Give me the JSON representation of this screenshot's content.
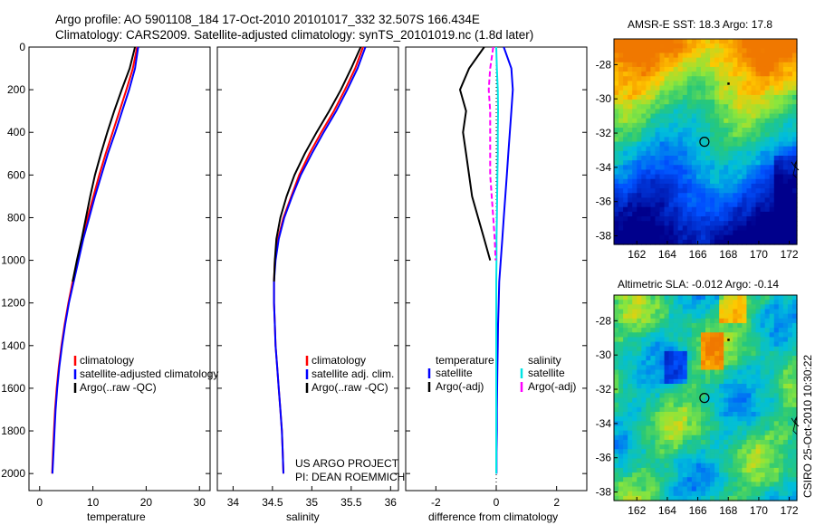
{
  "header": {
    "line1": "Argo profile: AO 5901108_184 17-Oct-2010 20101017_332 32.507S 166.434E",
    "line2": "Climatology: CARS2009. Satellite-adjusted climatology: synTS_20101019.nc (1.8d later)"
  },
  "footer": {
    "project": "US ARGO PROJECT",
    "pi": "PI: DEAN ROEMMICH",
    "timestamp": "CSIRO 25-Oct-2010 10:30:22"
  },
  "colors": {
    "climatology": "#ff0000",
    "satellite": "#0000ff",
    "argo": "#000000",
    "salinity_satellite": "#00e5e5",
    "salinity_argo": "#ff00ff",
    "marker": "#000000"
  },
  "chart_data": [
    {
      "type": "line",
      "id": "temperature",
      "xlabel": "temperature",
      "ylabel": "",
      "xlim": [
        -2,
        32
      ],
      "ylim": [
        2080,
        0
      ],
      "xticks": [
        "0",
        "10",
        "20",
        "30"
      ],
      "yticks": [
        "0",
        "200",
        "400",
        "600",
        "800",
        "1000",
        "1200",
        "1400",
        "1600",
        "1800",
        "2000"
      ],
      "depth": [
        0,
        100,
        200,
        300,
        400,
        500,
        600,
        700,
        800,
        900,
        1000,
        1100,
        1200,
        1300,
        1400,
        1500,
        1600,
        1700,
        1800,
        1900,
        2000
      ],
      "legend": [
        "climatology",
        "satellite-adjusted climatology",
        "Argo(..raw -QC)"
      ],
      "series": [
        {
          "name": "climatology",
          "color": "red",
          "values": [
            18.3,
            17.5,
            16.3,
            15.0,
            13.7,
            12.4,
            11.2,
            10.1,
            9.0,
            8.0,
            7.1,
            6.2,
            5.4,
            4.7,
            4.1,
            3.6,
            3.2,
            2.9,
            2.7,
            2.5,
            2.35
          ]
        },
        {
          "name": "satellite-adjusted climatology",
          "color": "blue",
          "values": [
            18.5,
            17.9,
            16.8,
            15.5,
            14.2,
            12.8,
            11.6,
            10.4,
            9.3,
            8.2,
            7.3,
            6.4,
            5.5,
            4.8,
            4.2,
            3.7,
            3.3,
            3.0,
            2.8,
            2.6,
            2.4
          ]
        },
        {
          "name": "Argo(..raw -QC)",
          "color": "black",
          "values": [
            17.9,
            16.9,
            15.4,
            14.0,
            12.7,
            11.5,
            10.4,
            9.5,
            8.7,
            7.9,
            7.0,
            6.2,
            null,
            null,
            null,
            null,
            null,
            null,
            null,
            null,
            null
          ]
        }
      ]
    },
    {
      "type": "line",
      "id": "salinity",
      "xlabel": "salinity",
      "ylabel": "",
      "xlim": [
        33.8,
        36.1
      ],
      "ylim": [
        2080,
        0
      ],
      "xticks": [
        "34",
        "34.5",
        "35",
        "35.5",
        "36"
      ],
      "depth": [
        0,
        100,
        200,
        300,
        400,
        500,
        600,
        700,
        800,
        900,
        1000,
        1100,
        1200,
        1300,
        1400,
        1500,
        1600,
        1700,
        1800,
        1900,
        2000
      ],
      "legend": [
        "climatology",
        "satellite adj. clim.",
        "Argo(..raw -QC)"
      ],
      "series": [
        {
          "name": "climatology",
          "color": "red",
          "values": [
            35.65,
            35.55,
            35.42,
            35.28,
            35.12,
            34.97,
            34.84,
            34.74,
            34.64,
            34.57,
            34.53,
            34.52,
            34.52,
            34.53,
            34.54,
            34.56,
            34.58,
            34.6,
            34.62,
            34.63,
            34.64
          ]
        },
        {
          "name": "satellite adj. clim.",
          "color": "blue",
          "values": [
            35.68,
            35.58,
            35.45,
            35.31,
            35.15,
            35.0,
            34.86,
            34.75,
            34.65,
            34.58,
            34.54,
            34.52,
            34.52,
            34.53,
            34.54,
            34.56,
            34.58,
            34.6,
            34.62,
            34.63,
            34.64
          ]
        },
        {
          "name": "Argo(..raw -QC)",
          "color": "black",
          "values": [
            35.62,
            35.5,
            35.37,
            35.22,
            35.06,
            34.91,
            34.78,
            34.68,
            34.6,
            34.55,
            34.53,
            34.52,
            null,
            null,
            null,
            null,
            null,
            null,
            null,
            null,
            null
          ]
        }
      ]
    },
    {
      "type": "line",
      "id": "difference",
      "xlabel": "difference from climatology",
      "ylabel": "",
      "xlim": [
        -3,
        3
      ],
      "ylim": [
        2080,
        0
      ],
      "xticks": [
        "-2",
        "0",
        "2"
      ],
      "depth": [
        0,
        100,
        200,
        300,
        400,
        500,
        600,
        700,
        800,
        900,
        1000,
        1100,
        1200,
        1300,
        1400,
        1500,
        1600,
        1700,
        1800,
        1900,
        2000
      ],
      "legend_groups": [
        {
          "title": "temperature",
          "entries": [
            "satellite",
            "Argo(-adj)"
          ]
        },
        {
          "title": "salinity",
          "entries": [
            "satellite",
            "Argo(-adj)"
          ]
        }
      ],
      "series": [
        {
          "name": "temperature satellite",
          "color": "blue",
          "values": [
            0.25,
            0.5,
            0.55,
            0.5,
            0.45,
            0.4,
            0.35,
            0.3,
            0.25,
            0.2,
            0.15,
            0.1,
            0.08,
            0.06,
            0.05,
            0.04,
            0.03,
            0.02,
            0.02,
            0.01,
            0.01
          ]
        },
        {
          "name": "temperature Argo(-adj)",
          "color": "black",
          "values": [
            -0.4,
            -0.9,
            -1.2,
            -1.0,
            -1.1,
            -1.0,
            -0.9,
            -0.8,
            -0.6,
            -0.4,
            -0.2,
            null,
            null,
            null,
            null,
            null,
            null,
            null,
            null,
            null,
            null
          ]
        },
        {
          "name": "salinity satellite",
          "color": "cyan",
          "values": [
            0.0,
            0.02,
            0.05,
            0.06,
            0.05,
            0.05,
            0.04,
            0.03,
            0.02,
            0.01,
            0.01,
            0.0,
            0.0,
            0.0,
            0.0,
            0.0,
            0.0,
            0.0,
            0.0,
            0.0,
            0.0
          ]
        },
        {
          "name": "salinity Argo(-adj)",
          "color": "magenta",
          "values": [
            -0.1,
            -0.2,
            -0.25,
            -0.2,
            -0.2,
            -0.2,
            -0.2,
            -0.15,
            -0.1,
            -0.05,
            -0.02,
            null,
            null,
            null,
            null,
            null,
            null,
            null,
            null,
            null,
            null
          ]
        }
      ]
    },
    {
      "type": "heatmap",
      "id": "sst_map",
      "title": "AMSR-E SST: 18.3 Argo: 17.8",
      "xlim": [
        160.5,
        172.5
      ],
      "ylim": [
        -38.5,
        -26.5
      ],
      "xticks": [
        "162",
        "164",
        "166",
        "168",
        "170",
        "172"
      ],
      "yticks": [
        "-28",
        "-30",
        "-32",
        "-34",
        "-36",
        "-38"
      ],
      "profile_location": {
        "lon": 166.434,
        "lat": -32.507
      },
      "marker_dot": {
        "lon": 168.0,
        "lat": -29.1
      }
    },
    {
      "type": "heatmap",
      "id": "sla_map",
      "title": "Altimetric SLA: -0.012 Argo: -0.14",
      "xlim": [
        160.5,
        172.5
      ],
      "ylim": [
        -38.5,
        -26.5
      ],
      "xticks": [
        "162",
        "164",
        "166",
        "168",
        "170",
        "172"
      ],
      "yticks": [
        "-28",
        "-30",
        "-32",
        "-34",
        "-36",
        "-38"
      ],
      "profile_location": {
        "lon": 166.434,
        "lat": -32.507
      },
      "marker_dot": {
        "lon": 168.0,
        "lat": -29.1
      }
    }
  ]
}
